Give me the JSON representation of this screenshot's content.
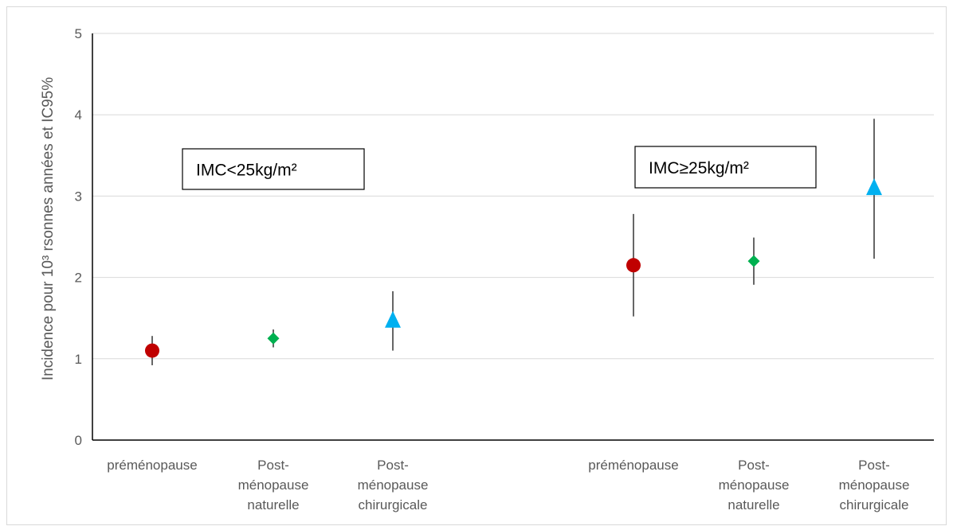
{
  "chart_data": {
    "type": "scatter",
    "ylabel": "Incidence pour 10³ rsonnes années et IC95%",
    "ylim": [
      0,
      5
    ],
    "yticks": [
      0,
      1,
      2,
      3,
      4,
      5
    ],
    "grid": true,
    "groups": [
      {
        "label": "IMC<25kg/m²",
        "points": [
          {
            "category": [
              "préménopause"
            ],
            "value": 1.1,
            "low": 0.92,
            "high": 1.28,
            "marker": "circle",
            "color": "#c00000"
          },
          {
            "category": [
              "Post-",
              "ménopause",
              "naturelle"
            ],
            "value": 1.25,
            "low": 1.14,
            "high": 1.36,
            "marker": "diamond",
            "color": "#00b050"
          },
          {
            "category": [
              "Post-",
              "ménopause",
              "chirurgicale"
            ],
            "value": 1.47,
            "low": 1.1,
            "high": 1.83,
            "marker": "triangle",
            "color": "#00b0f0"
          }
        ]
      },
      {
        "label": "IMC≥25kg/m²",
        "points": [
          {
            "category": [
              "préménopause"
            ],
            "value": 2.15,
            "low": 1.52,
            "high": 2.78,
            "marker": "circle",
            "color": "#c00000"
          },
          {
            "category": [
              "Post-",
              "ménopause",
              "naturelle"
            ],
            "value": 2.2,
            "low": 1.91,
            "high": 2.49,
            "marker": "diamond",
            "color": "#00b050"
          },
          {
            "category": [
              "Post-",
              "ménopause",
              "chirurgicale"
            ],
            "value": 3.1,
            "low": 2.23,
            "high": 3.95,
            "marker": "triangle",
            "color": "#00b0f0"
          }
        ]
      }
    ]
  }
}
